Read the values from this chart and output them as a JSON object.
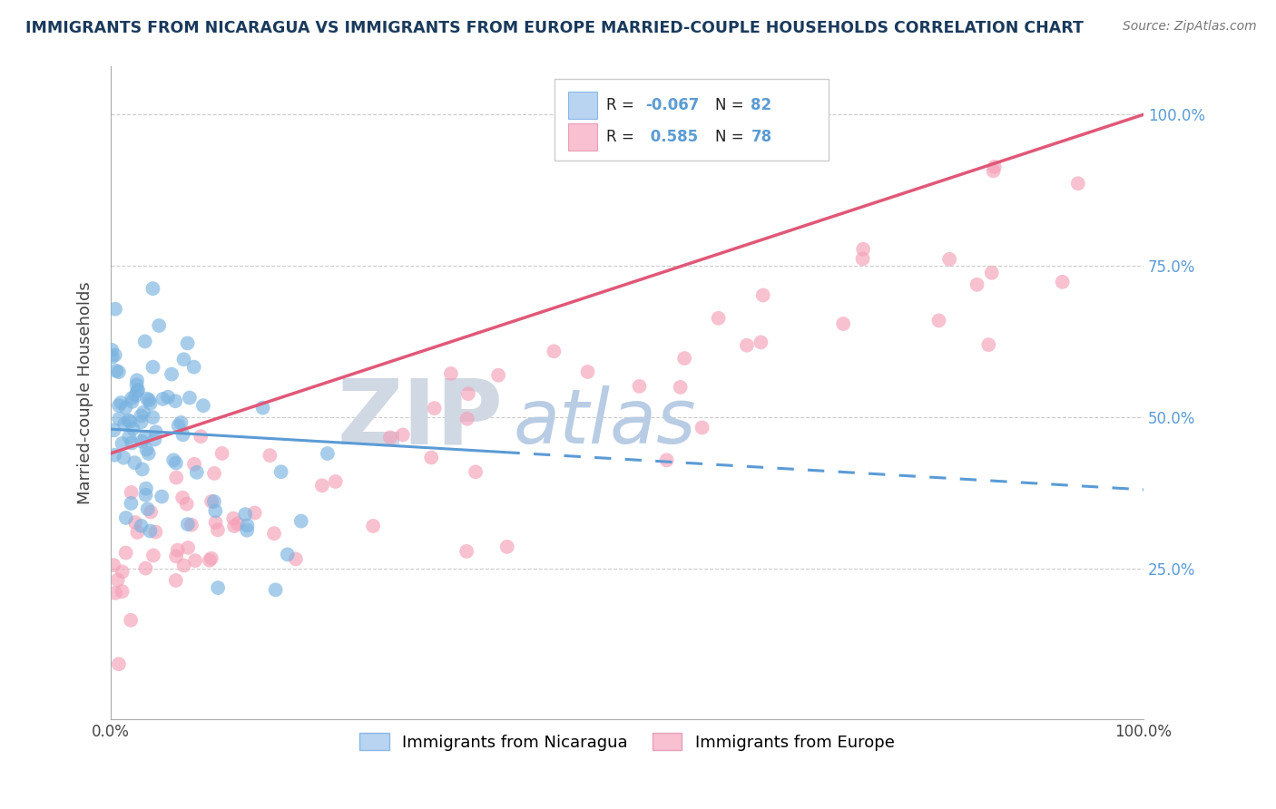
{
  "title": "IMMIGRANTS FROM NICARAGUA VS IMMIGRANTS FROM EUROPE MARRIED-COUPLE HOUSEHOLDS CORRELATION CHART",
  "source": "Source: ZipAtlas.com",
  "ylabel": "Married-couple Households",
  "x_tick_labels": [
    "0.0%",
    "",
    "",
    "",
    "100.0%"
  ],
  "y_tick_labels_right": [
    "25.0%",
    "50.0%",
    "75.0%",
    "100.0%"
  ],
  "blue_scatter_color": "#7ab3e0",
  "pink_scatter_color": "#f4a0b8",
  "blue_line_color": "#5b9bd5",
  "pink_line_color": "#e05878",
  "blue_legend_fill": "#b8d4f0",
  "pink_legend_fill": "#f8c0d0",
  "watermark_zip_color": "#d0d8e4",
  "watermark_atlas_color": "#b8cce4",
  "background_color": "#ffffff",
  "R_nicaragua": -0.067,
  "N_nicaragua": 82,
  "R_europe": 0.585,
  "N_europe": 78,
  "title_color": "#1a3a5c",
  "source_color": "#777777",
  "right_tick_color": "#5b9bd5",
  "grid_color": "#cccccc",
  "seed": 7
}
